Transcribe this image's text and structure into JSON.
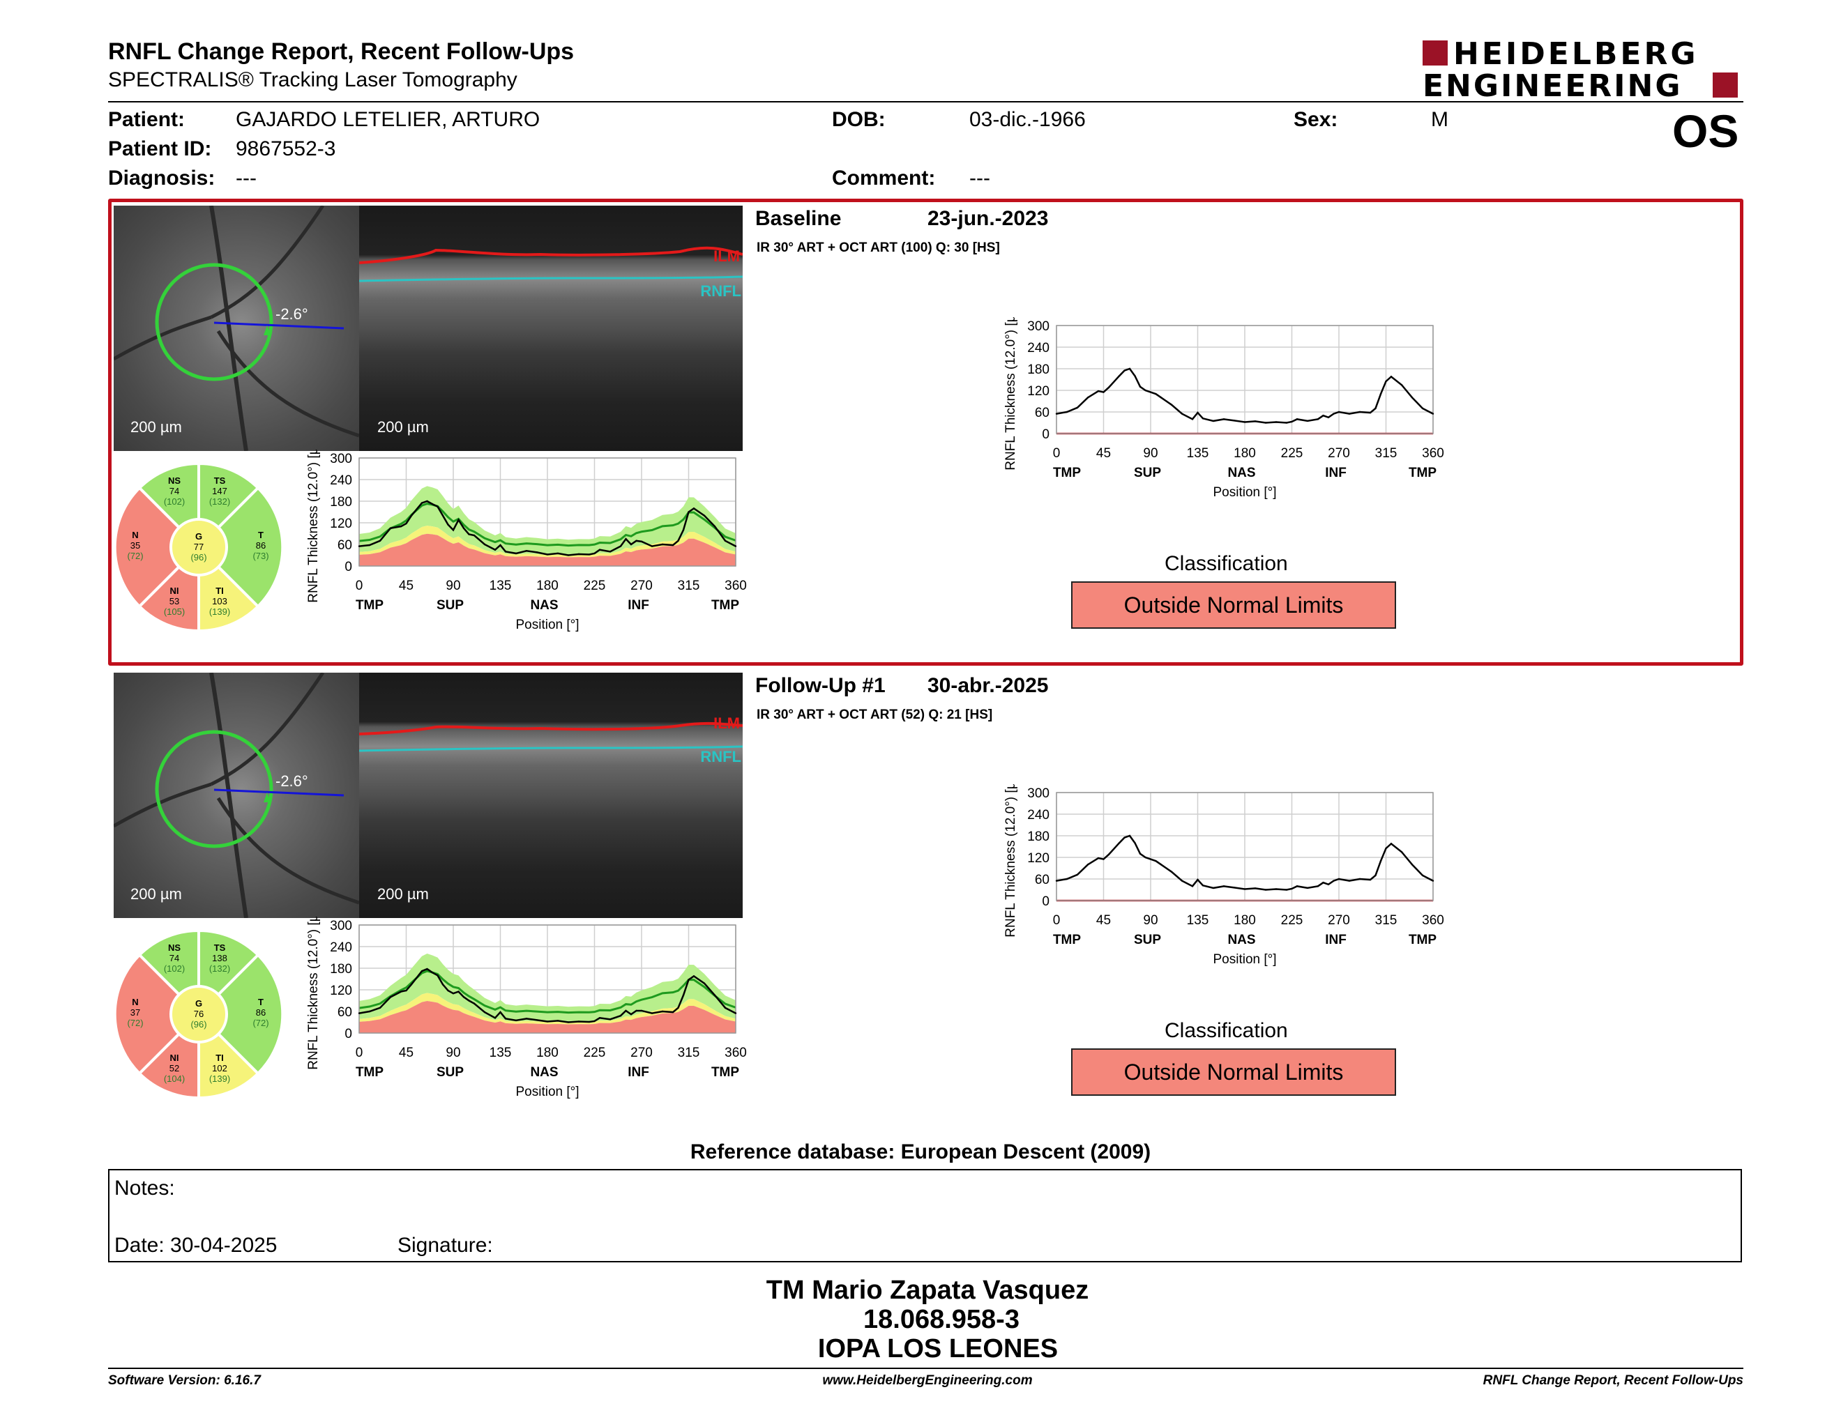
{
  "header": {
    "title": "RNFL Change Report, Recent Follow-Ups",
    "subtitle": "SPECTRALIS® Tracking Laser Tomography",
    "logo_line1": "HEIDELBERG",
    "logo_line2": "ENGINEERING",
    "eye": "OS"
  },
  "patient": {
    "patient_label": "Patient:",
    "patient_value": "GAJARDO LETELIER, ARTURO",
    "id_label": "Patient ID:",
    "id_value": "9867552-3",
    "diagnosis_label": "Diagnosis:",
    "diagnosis_value": "---",
    "dob_label": "DOB:",
    "dob_value": "03-dic.-1966",
    "comment_label": "Comment:",
    "comment_value": "---",
    "sex_label": "Sex:",
    "sex_value": "M"
  },
  "colors": {
    "accent_red": "#c0101c",
    "normal_green": "#9be36b",
    "borderline_yellow": "#f6f37a",
    "outside_red": "#f4877b",
    "mean_line": "#1e9a1e"
  },
  "exams": [
    {
      "name": "Baseline",
      "date": "23-jun.-2023",
      "params": "IR 30° ART + OCT ART (100) Q: 30 [HS]",
      "angle": "-2.6°",
      "scale_fundus": "200 µm",
      "scale_oct": "200 µm",
      "ilm": "ILM",
      "rnfl": "RNFL",
      "sectors": {
        "NS": {
          "label": "NS",
          "value": "74",
          "ref": "(102)"
        },
        "TS": {
          "label": "TS",
          "value": "147",
          "ref": "(132)"
        },
        "N": {
          "label": "N",
          "value": "35",
          "ref": "(72)"
        },
        "G": {
          "label": "G",
          "value": "77",
          "ref": "(96)"
        },
        "T": {
          "label": "T",
          "value": "86",
          "ref": "(73)"
        },
        "NI": {
          "label": "NI",
          "value": "53",
          "ref": "(105)"
        },
        "TI": {
          "label": "TI",
          "value": "103",
          "ref": "(139)"
        }
      },
      "classification_label": "Classification",
      "classification_value": "Outside Normal Limits"
    },
    {
      "name": "Follow-Up #1",
      "date": "30-abr.-2025",
      "params": "IR 30° ART + OCT ART (52) Q: 21 [HS]",
      "angle": "-2.6°",
      "scale_fundus": "200 µm",
      "scale_oct": "200 µm",
      "ilm": "ILM",
      "rnfl": "RNFL",
      "sectors": {
        "NS": {
          "label": "NS",
          "value": "74",
          "ref": "(102)"
        },
        "TS": {
          "label": "TS",
          "value": "138",
          "ref": "(132)"
        },
        "N": {
          "label": "N",
          "value": "37",
          "ref": "(72)"
        },
        "G": {
          "label": "G",
          "value": "76",
          "ref": "(96)"
        },
        "T": {
          "label": "T",
          "value": "86",
          "ref": "(72)"
        },
        "NI": {
          "label": "NI",
          "value": "52",
          "ref": "(104)"
        },
        "TI": {
          "label": "TI",
          "value": "102",
          "ref": "(139)"
        }
      },
      "classification_label": "Classification",
      "classification_value": "Outside Normal Limits"
    }
  ],
  "chart_data": [
    {
      "type": "line",
      "title": "",
      "xlabel": "Position [°]",
      "ylabel": "RNFL Thickness (12.0°) [µm]",
      "xlim": [
        0,
        360
      ],
      "ylim": [
        0,
        300
      ],
      "xticks": [
        0,
        45,
        90,
        135,
        180,
        225,
        270,
        315,
        360
      ],
      "yticks": [
        0,
        60,
        120,
        180,
        240,
        300
      ],
      "region_labels": [
        "TMP",
        "SUP",
        "NAS",
        "INF",
        "TMP"
      ],
      "region_positions": [
        10,
        87,
        177,
        267,
        350
      ],
      "x": [
        0,
        10,
        20,
        30,
        40,
        45,
        50,
        60,
        65,
        70,
        75,
        80,
        85,
        90,
        95,
        100,
        105,
        110,
        120,
        130,
        135,
        140,
        150,
        160,
        170,
        180,
        190,
        200,
        210,
        220,
        225,
        230,
        240,
        250,
        255,
        260,
        265,
        270,
        280,
        290,
        300,
        305,
        310,
        315,
        320,
        330,
        340,
        350,
        360
      ],
      "series": [
        {
          "values": [
            55,
            58,
            70,
            105,
            110,
            118,
            140,
            175,
            180,
            172,
            165,
            140,
            115,
            100,
            128,
            105,
            88,
            85,
            60,
            45,
            58,
            40,
            35,
            42,
            38,
            32,
            35,
            30,
            33,
            32,
            35,
            45,
            40,
            55,
            75,
            60,
            70,
            68,
            55,
            60,
            58,
            70,
            100,
            150,
            160,
            140,
            110,
            70,
            55
          ]
        }
      ]
    },
    {
      "type": "line",
      "title": "",
      "xlabel": "Position [°]",
      "ylabel": "RNFL Thickness (12.0°) [µm]",
      "xlim": [
        0,
        360
      ],
      "ylim": [
        0,
        300
      ],
      "xticks": [
        0,
        45,
        90,
        135,
        180,
        225,
        270,
        315,
        360
      ],
      "yticks": [
        0,
        60,
        120,
        180,
        240,
        300
      ],
      "region_labels": [
        "TMP",
        "SUP",
        "NAS",
        "INF",
        "TMP"
      ],
      "region_positions": [
        10,
        87,
        177,
        267,
        350
      ],
      "x": [
        0,
        10,
        20,
        30,
        40,
        45,
        50,
        60,
        65,
        70,
        75,
        80,
        85,
        90,
        95,
        100,
        105,
        110,
        120,
        130,
        135,
        140,
        150,
        160,
        170,
        180,
        190,
        200,
        210,
        220,
        225,
        230,
        240,
        250,
        255,
        260,
        265,
        270,
        280,
        290,
        300,
        305,
        310,
        315,
        320,
        330,
        340,
        350,
        360
      ],
      "series": [
        {
          "values": [
            55,
            60,
            72,
            100,
            118,
            115,
            128,
            160,
            175,
            180,
            160,
            130,
            120,
            115,
            110,
            100,
            90,
            80,
            55,
            40,
            58,
            42,
            35,
            40,
            36,
            32,
            34,
            30,
            32,
            30,
            33,
            40,
            35,
            40,
            50,
            45,
            55,
            60,
            55,
            60,
            58,
            70,
            110,
            145,
            158,
            135,
            100,
            70,
            55
          ]
        }
      ]
    },
    {
      "type": "line",
      "title": "",
      "xlabel": "Position [°]",
      "ylabel": "RNFL Thickness (12.0°) [µm]",
      "xlim": [
        0,
        360
      ],
      "ylim": [
        0,
        300
      ],
      "xticks": [
        0,
        45,
        90,
        135,
        180,
        225,
        270,
        315,
        360
      ],
      "yticks": [
        0,
        60,
        120,
        180,
        240,
        300
      ],
      "region_labels": [
        "TMP",
        "SUP",
        "NAS",
        "INF",
        "TMP"
      ],
      "region_positions": [
        10,
        87,
        177,
        267,
        350
      ],
      "x": [
        0,
        10,
        20,
        30,
        40,
        45,
        50,
        60,
        65,
        70,
        75,
        80,
        85,
        90,
        95,
        100,
        105,
        110,
        120,
        130,
        135,
        140,
        150,
        160,
        170,
        180,
        190,
        200,
        210,
        220,
        225,
        230,
        240,
        250,
        255,
        260,
        265,
        270,
        280,
        290,
        300,
        305,
        310,
        315,
        320,
        330,
        340,
        350,
        360
      ],
      "series": [
        {
          "values": [
            55,
            60,
            70,
            100,
            115,
            118,
            135,
            172,
            178,
            168,
            160,
            135,
            118,
            110,
            115,
            100,
            90,
            82,
            58,
            42,
            58,
            40,
            35,
            40,
            36,
            32,
            34,
            30,
            32,
            31,
            33,
            42,
            38,
            48,
            62,
            52,
            62,
            62,
            55,
            60,
            58,
            70,
            105,
            148,
            158,
            138,
            105,
            70,
            55
          ]
        }
      ]
    },
    {
      "type": "line",
      "title": "",
      "xlabel": "Position [°]",
      "ylabel": "RNFL Thickness (12.0°) [µm]",
      "xlim": [
        0,
        360
      ],
      "ylim": [
        0,
        300
      ],
      "xticks": [
        0,
        45,
        90,
        135,
        180,
        225,
        270,
        315,
        360
      ],
      "yticks": [
        0,
        60,
        120,
        180,
        240,
        300
      ],
      "region_labels": [
        "TMP",
        "SUP",
        "NAS",
        "INF",
        "TMP"
      ],
      "region_positions": [
        10,
        87,
        177,
        267,
        350
      ],
      "x": [
        0,
        10,
        20,
        30,
        40,
        45,
        50,
        60,
        65,
        70,
        75,
        80,
        85,
        90,
        95,
        100,
        105,
        110,
        120,
        130,
        135,
        140,
        150,
        160,
        170,
        180,
        190,
        200,
        210,
        220,
        225,
        230,
        240,
        250,
        255,
        260,
        265,
        270,
        280,
        290,
        300,
        305,
        310,
        315,
        320,
        330,
        340,
        350,
        360
      ],
      "series": [
        {
          "values": [
            55,
            60,
            72,
            100,
            118,
            115,
            128,
            160,
            175,
            180,
            160,
            130,
            120,
            115,
            110,
            100,
            90,
            80,
            55,
            40,
            58,
            42,
            35,
            40,
            36,
            32,
            34,
            30,
            32,
            30,
            33,
            40,
            35,
            40,
            50,
            45,
            55,
            60,
            55,
            60,
            58,
            70,
            110,
            145,
            158,
            135,
            100,
            70,
            55
          ]
        }
      ]
    }
  ],
  "reference": "Reference database: European Descent (2009)",
  "notes": {
    "notes_label": "Notes:",
    "date_label": "Date: 30-04-2025",
    "signature_label": "Signature:"
  },
  "operator": {
    "name": "TM Mario Zapata Vasquez",
    "rut": "18.068.958-3",
    "center": "IOPA LOS LEONES"
  },
  "footer": {
    "version": "Software Version: 6.16.7",
    "url": "www.HeidelbergEngineering.com",
    "report": "RNFL Change Report, Recent Follow-Ups"
  }
}
